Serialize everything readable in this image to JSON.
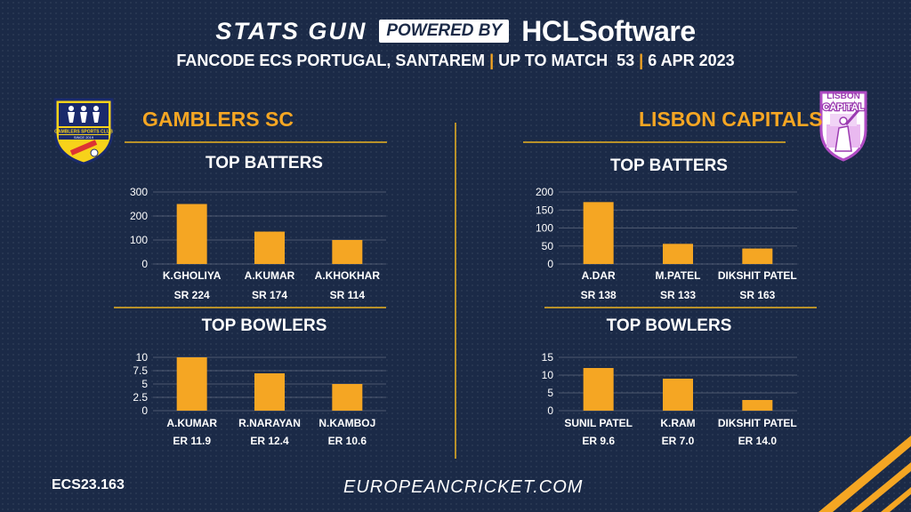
{
  "header": {
    "stats_gun": "STATS GUN",
    "powered_by": "POWERED BY",
    "sponsor_hcl": "HCL",
    "sponsor_software": "Software",
    "subtitle_part1": "FANCODE ECS PORTUGAL, SANTAREM",
    "subtitle_part2": "UP TO MATCH  53",
    "subtitle_part3": "6 APR 2023",
    "separator": "|"
  },
  "teams": {
    "left": {
      "name": "GAMBLERS SC",
      "logo_text_top": "GAMBLERS SPORTS CLUB",
      "logo_text_bottom": "SINCE 2019"
    },
    "right": {
      "name": "LISBON CAPITALS",
      "logo_text_top": "LISBON",
      "logo_text_bottom": "CAPITAL"
    }
  },
  "colors": {
    "background": "#1b2a47",
    "accent": "#f5a623",
    "rule": "#b8912a",
    "text": "#ffffff"
  },
  "chart_data": [
    {
      "id": "gamblers-top-batters",
      "type": "bar",
      "title": "TOP BATTERS",
      "categories": [
        "K.GHOLIYA",
        "A.KUMAR",
        "A.KHOKHAR"
      ],
      "values": [
        250,
        135,
        100
      ],
      "sublabels": [
        "SR 224",
        "SR 174",
        "SR 114"
      ],
      "yticks": [
        "0",
        "100",
        "200",
        "300"
      ],
      "ylim": [
        0,
        300
      ],
      "grid": true
    },
    {
      "id": "gamblers-top-bowlers",
      "type": "bar",
      "title": "TOP BOWLERS",
      "categories": [
        "A.KUMAR",
        "R.NARAYAN",
        "N.KAMBOJ"
      ],
      "values": [
        10,
        7,
        5
      ],
      "sublabels": [
        "ER 11.9",
        "ER 12.4",
        "ER 10.6"
      ],
      "yticks": [
        "0",
        "2.5",
        "5",
        "7.5",
        "10"
      ],
      "ylim": [
        0,
        10
      ],
      "grid": true
    },
    {
      "id": "lisbon-top-batters",
      "type": "bar",
      "title": "TOP BATTERS",
      "categories": [
        "A.DAR",
        "M.PATEL",
        "DIKSHIT PATEL"
      ],
      "values": [
        172,
        56,
        43
      ],
      "sublabels": [
        "SR 138",
        "SR 133",
        "SR 163"
      ],
      "yticks": [
        "0",
        "50",
        "100",
        "150",
        "200"
      ],
      "ylim": [
        0,
        200
      ],
      "grid": true
    },
    {
      "id": "lisbon-top-bowlers",
      "type": "bar",
      "title": "TOP BOWLERS",
      "categories": [
        "SUNIL PATEL",
        "K.RAM",
        "DIKSHIT PATEL"
      ],
      "values": [
        12,
        9,
        3
      ],
      "sublabels": [
        "ER 9.6",
        "ER 7.0",
        "ER 14.0"
      ],
      "yticks": [
        "0",
        "5",
        "10",
        "15"
      ],
      "ylim": [
        0,
        15
      ],
      "grid": true
    }
  ],
  "footer": {
    "id": "ECS23.163",
    "site": "EUROPEANCRICKET.COM"
  }
}
